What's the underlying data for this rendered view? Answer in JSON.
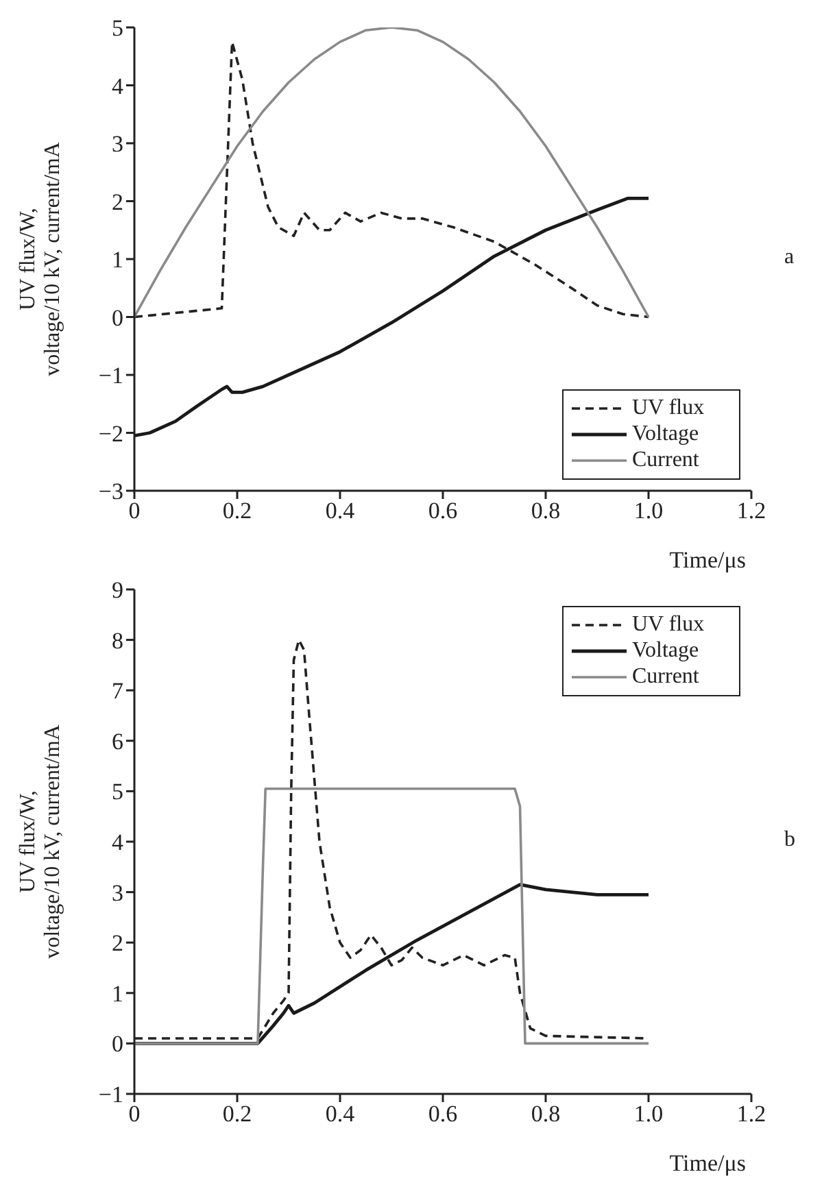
{
  "chart_data": [
    {
      "type": "line",
      "xlabel": "Time/μs",
      "ylabel": "UV flux/W,\nvoltage/10 kV, current/mA",
      "annotations": [
        "a"
      ],
      "xlim": [
        0,
        1.2
      ],
      "xticks": [
        0,
        0.2,
        0.4,
        0.6,
        0.8,
        {
          "value": 1,
          "label": "1.0"
        },
        1.2
      ],
      "ylim": [
        -3,
        5
      ],
      "yticks": [
        -3,
        -2,
        -1,
        0,
        1,
        2,
        3,
        4,
        5
      ],
      "legend": "bottom right",
      "grid": false,
      "marker": "none",
      "series": [
        {
          "name": "UV flux",
          "color": "#222222",
          "line_style": "dashed",
          "x": [
            0,
            0.17,
            0.19,
            0.21,
            0.23,
            0.26,
            0.28,
            0.31,
            0.33,
            0.36,
            0.38,
            0.41,
            0.44,
            0.48,
            0.52,
            0.56,
            0.62,
            0.7,
            0.78,
            0.85,
            0.9,
            0.95,
            1.0
          ],
          "values": [
            0,
            0.15,
            4.75,
            4.1,
            3.0,
            1.9,
            1.55,
            1.4,
            1.8,
            1.5,
            1.5,
            1.8,
            1.65,
            1.8,
            1.7,
            1.7,
            1.55,
            1.3,
            0.9,
            0.5,
            0.2,
            0.05,
            0
          ]
        },
        {
          "name": "Voltage",
          "color": "#1a1a1a",
          "line_style": "solid",
          "x": [
            0,
            0.03,
            0.08,
            0.12,
            0.17,
            0.18,
            0.19,
            0.21,
            0.25,
            0.3,
            0.4,
            0.5,
            0.6,
            0.7,
            0.8,
            0.9,
            0.96,
            1.0
          ],
          "values": [
            -2.05,
            -2.0,
            -1.8,
            -1.55,
            -1.25,
            -1.2,
            -1.3,
            -1.3,
            -1.2,
            -1.0,
            -0.6,
            -0.1,
            0.45,
            1.05,
            1.5,
            1.85,
            2.05,
            2.05
          ]
        },
        {
          "name": "Current",
          "color": "#8a8a8a",
          "line_style": "solid",
          "x": [
            0,
            0.05,
            0.1,
            0.15,
            0.2,
            0.25,
            0.3,
            0.35,
            0.4,
            0.45,
            0.5,
            0.55,
            0.6,
            0.65,
            0.7,
            0.75,
            0.8,
            0.85,
            0.9,
            0.95,
            1.0
          ],
          "values": [
            0,
            0.8,
            1.55,
            2.25,
            2.95,
            3.55,
            4.05,
            4.45,
            4.75,
            4.95,
            5,
            4.95,
            4.75,
            4.45,
            4.05,
            3.55,
            2.95,
            2.25,
            1.55,
            0.8,
            0
          ]
        }
      ]
    },
    {
      "type": "line",
      "xlabel": "Time/μs",
      "ylabel": "UV flux/W,\nvoltage/10 kV, current/mA",
      "annotations": [
        "b"
      ],
      "xlim": [
        0,
        1.2
      ],
      "xticks": [
        0,
        0.2,
        0.4,
        0.6,
        0.8,
        {
          "value": 1,
          "label": "1.0"
        },
        1.2
      ],
      "ylim": [
        -1,
        9
      ],
      "yticks": [
        -1,
        0,
        1,
        2,
        3,
        4,
        5,
        6,
        7,
        8,
        9
      ],
      "legend": "top right",
      "grid": false,
      "marker": "none",
      "series": [
        {
          "name": "UV flux",
          "color": "#222222",
          "line_style": "dashed",
          "x": [
            0,
            0.24,
            0.27,
            0.29,
            0.3,
            0.305,
            0.31,
            0.32,
            0.33,
            0.34,
            0.36,
            0.38,
            0.4,
            0.42,
            0.44,
            0.46,
            0.48,
            0.5,
            0.52,
            0.54,
            0.56,
            0.6,
            0.64,
            0.68,
            0.72,
            0.74,
            0.75,
            0.77,
            0.8,
            1.0
          ],
          "values": [
            0.1,
            0.1,
            0.6,
            0.85,
            1.0,
            5,
            7.6,
            8.0,
            7.8,
            6.5,
            4,
            2.7,
            2.0,
            1.7,
            1.85,
            2.15,
            1.9,
            1.55,
            1.65,
            1.9,
            1.7,
            1.55,
            1.75,
            1.55,
            1.75,
            1.7,
            1.0,
            0.3,
            0.15,
            0.1
          ]
        },
        {
          "name": "Voltage",
          "color": "#1a1a1a",
          "line_style": "solid",
          "x": [
            0,
            0.24,
            0.27,
            0.29,
            0.3,
            0.31,
            0.35,
            0.45,
            0.55,
            0.65,
            0.75,
            0.8,
            0.9,
            1.0
          ],
          "values": [
            0,
            0,
            0.35,
            0.6,
            0.75,
            0.6,
            0.8,
            1.45,
            2.05,
            2.6,
            3.15,
            3.05,
            2.95,
            2.95
          ]
        },
        {
          "name": "Current",
          "color": "#8a8a8a",
          "line_style": "solid",
          "x": [
            0,
            0.24,
            0.25,
            0.255,
            0.74,
            0.75,
            0.76,
            1.0
          ],
          "values": [
            0,
            0,
            3.5,
            5.05,
            5.05,
            4.7,
            0,
            0
          ]
        }
      ]
    }
  ]
}
